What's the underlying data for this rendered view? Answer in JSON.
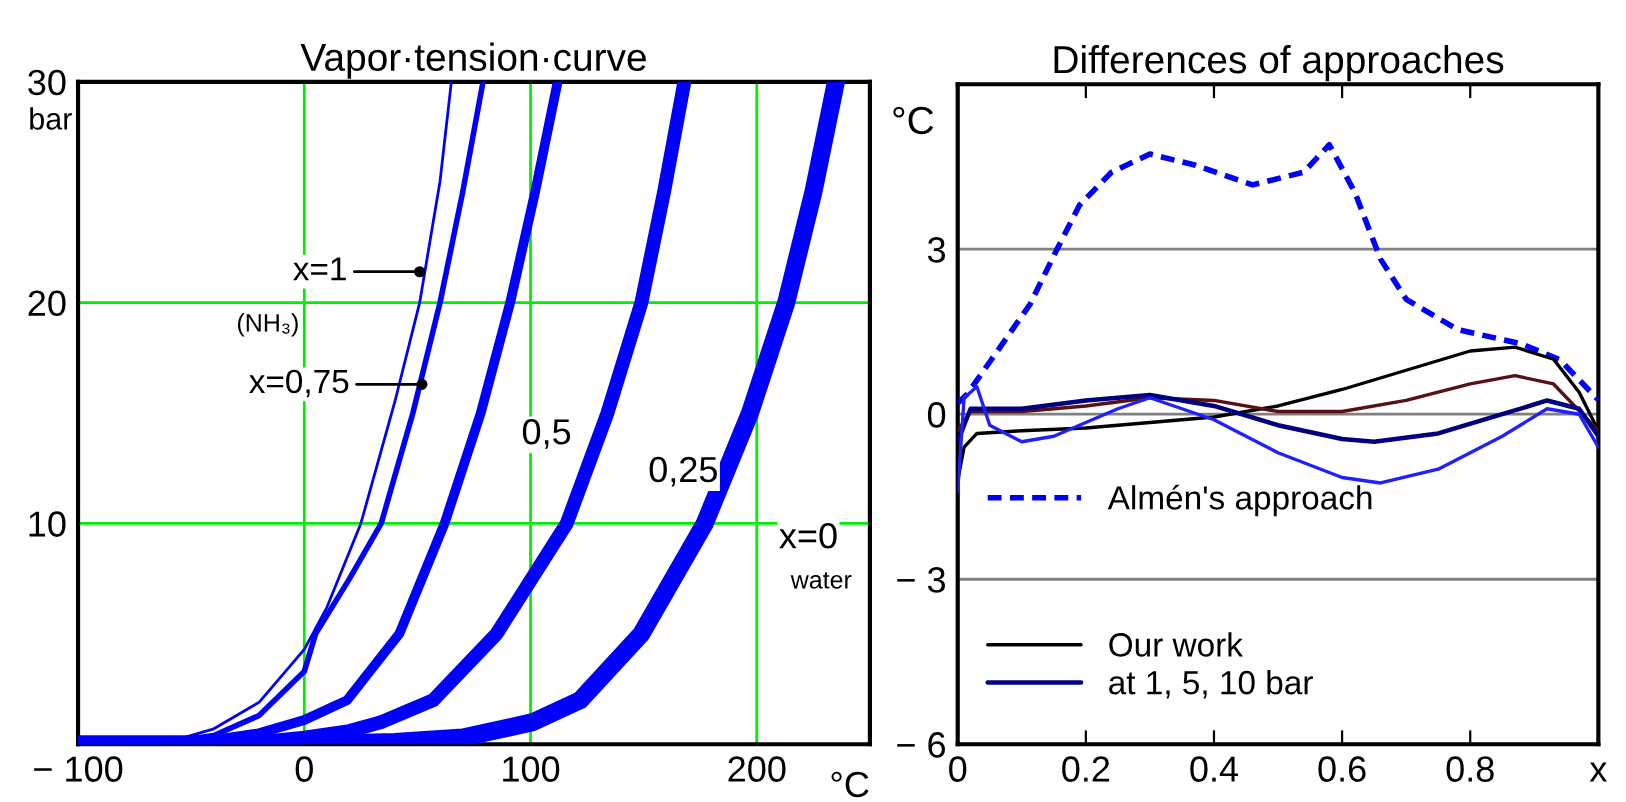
{
  "chart_data": [
    {
      "type": "line",
      "title": "Vapor·tension·curve",
      "xlabel": "°C",
      "ylabel": "bar",
      "xlim": [
        -100,
        250
      ],
      "ylim": [
        0,
        30
      ],
      "xticks": [
        {
          "value": -100,
          "label": "− 100"
        },
        0,
        100,
        200
      ],
      "yticks": [
        10,
        20,
        30
      ],
      "grid": true,
      "legend": false,
      "marker": "none",
      "line_style": "solid",
      "series": [
        {
          "color": "#0000ff",
          "x": [
            -100,
            -60,
            -40,
            -20,
            0,
            10,
            25,
            40,
            51,
            60,
            65
          ],
          "values": [
            0,
            0.1,
            0.7,
            1.9,
            4.3,
            6.2,
            10,
            15.5,
            20,
            25.5,
            30
          ]
        },
        {
          "color": "#0000ff",
          "x": [
            -100,
            -60,
            -40,
            -20,
            0,
            5,
            20,
            34,
            48,
            60,
            70,
            79
          ],
          "values": [
            0,
            0.1,
            0.4,
            1.3,
            3.3,
            5,
            7.5,
            10,
            15,
            20,
            25,
            30
          ]
        },
        {
          "color": "#0000ff",
          "x": [
            -100,
            -60,
            -40,
            -20,
            0,
            19,
            42,
            62,
            78,
            91,
            102,
            112
          ],
          "values": [
            0,
            0,
            0.2,
            0.5,
            1.1,
            2,
            5,
            10,
            15,
            20,
            25,
            30
          ]
        },
        {
          "color": "#0000ff",
          "x": [
            -100,
            -60,
            -20,
            0,
            20,
            34,
            57,
            85,
            116,
            134,
            149,
            159,
            168
          ],
          "values": [
            0,
            0,
            0.1,
            0.3,
            0.6,
            1,
            2,
            5,
            10,
            15,
            20,
            25,
            30
          ]
        },
        {
          "color": "#0000ff",
          "x": [
            -100,
            0,
            40,
            70,
            101,
            122,
            149,
            177,
            197,
            213,
            225,
            235
          ],
          "values": [
            0,
            0,
            0.1,
            0.3,
            1,
            2,
            5,
            10,
            15,
            20,
            25,
            30
          ]
        }
      ],
      "annotations": [
        {
          "text": "x=1",
          "x": 51,
          "y": 21.4
        },
        "(NH₃)",
        {
          "text": "x=0,75",
          "x": 52,
          "y": 16.3
        },
        "0,5",
        "0,25",
        "x=0",
        "water"
      ]
    },
    {
      "type": "line",
      "title": "Differences of approaches",
      "ylabel": "°C",
      "xlim": [
        0,
        1
      ],
      "ylim": [
        -6,
        6
      ],
      "xticks": [
        0,
        0.2,
        0.4,
        0.6,
        0.8,
        {
          "value": 1,
          "label": "x"
        }
      ],
      "yticks": [
        {
          "value": -6,
          "label": "− 6"
        },
        {
          "value": -3,
          "label": "− 3"
        },
        0,
        3
      ],
      "grid": "y",
      "legend": "bottom left",
      "marker": "none",
      "series": [
        {
          "name": "Almén's approach",
          "color": "#0000ff",
          "line_style": "dashed",
          "x": [
            0.0,
            0.015,
            0.053,
            0.113,
            0.152,
            0.19,
            0.24,
            0.3,
            0.37,
            0.46,
            0.54,
            0.58,
            0.62,
            0.66,
            0.7,
            0.78,
            0.88,
            0.94,
            1.0
          ],
          "values": [
            0.2,
            0.37,
            1.0,
            2.0,
            2.93,
            3.8,
            4.4,
            4.73,
            4.53,
            4.17,
            4.4,
            4.9,
            4.03,
            2.82,
            2.09,
            1.54,
            1.28,
            0.99,
            0.26
          ]
        },
        {
          "name": "Our work",
          "color": "#000000",
          "line_style": "solid",
          "x": [
            0,
            0.01,
            0.03,
            0.1,
            0.2,
            0.4,
            0.5,
            0.6,
            0.7,
            0.8,
            0.87,
            0.93,
            0.97,
            1.0
          ],
          "values": [
            -1.2,
            -0.6,
            -0.35,
            -0.3,
            -0.25,
            -0.05,
            0.15,
            0.45,
            0.8,
            1.15,
            1.22,
            1.0,
            0.4,
            -0.3
          ]
        },
        {
          "color": "#5a1010",
          "line_style": "solid",
          "x": [
            0,
            0.02,
            0.1,
            0.2,
            0.3,
            0.4,
            0.5,
            0.6,
            0.7,
            0.8,
            0.87,
            0.93,
            1.0
          ],
          "values": [
            -0.3,
            0.05,
            0.05,
            0.15,
            0.3,
            0.25,
            0.05,
            0.05,
            0.25,
            0.55,
            0.7,
            0.55,
            -0.3
          ]
        },
        {
          "name": "at 1, 5, 10 bar",
          "color": "#000080",
          "line_style": "solid",
          "x": [
            0,
            0.02,
            0.1,
            0.2,
            0.3,
            0.4,
            0.5,
            0.6,
            0.65,
            0.75,
            0.85,
            0.92,
            0.97,
            1.0
          ],
          "values": [
            -0.5,
            0.1,
            0.1,
            0.25,
            0.35,
            0.15,
            -0.2,
            -0.45,
            -0.5,
            -0.35,
            0.0,
            0.25,
            0.1,
            -0.4
          ]
        },
        {
          "color": "#2020ff",
          "line_style": "solid",
          "x": [
            0,
            0.01,
            0.03,
            0.05,
            0.1,
            0.15,
            0.25,
            0.3,
            0.4,
            0.5,
            0.6,
            0.66,
            0.75,
            0.85,
            0.92,
            0.97,
            1.0
          ],
          "values": [
            -1.4,
            0.3,
            0.5,
            -0.2,
            -0.5,
            -0.4,
            0.1,
            0.3,
            -0.1,
            -0.7,
            -1.15,
            -1.25,
            -1.0,
            -0.4,
            0.1,
            0.0,
            -0.6
          ]
        }
      ]
    }
  ]
}
